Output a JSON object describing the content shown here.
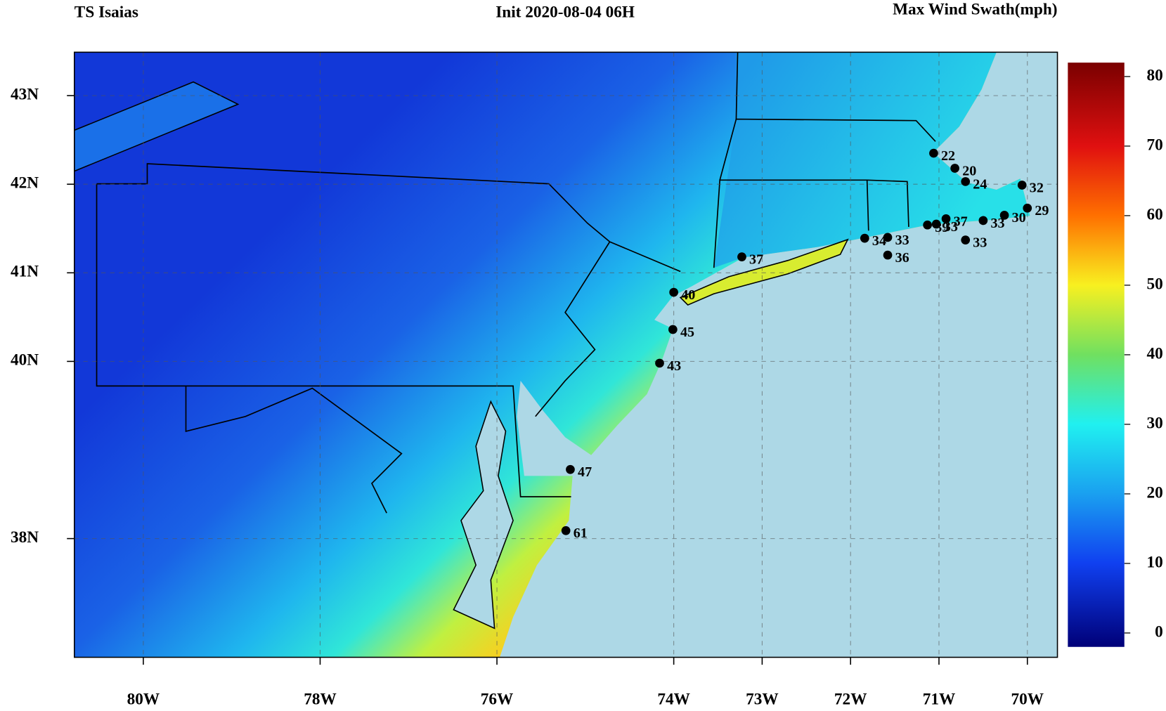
{
  "chart_data": {
    "type": "map",
    "title": "TS Isaias",
    "subtitle": "Init  2020-08-04 06H",
    "legend_title": "Max Wind Swath(mph)",
    "xlim": [
      -80.78,
      -69.66
    ],
    "ylim": [
      36.66,
      43.49
    ],
    "xticks": [
      {
        "value": -80,
        "label": "80W"
      },
      {
        "value": -78,
        "label": "78W"
      },
      {
        "value": -76,
        "label": "76W"
      },
      {
        "value": -74,
        "label": "74W"
      },
      {
        "value": -73,
        "label": "73W"
      },
      {
        "value": -72,
        "label": "72W"
      },
      {
        "value": -71,
        "label": "71W"
      },
      {
        "value": -70,
        "label": "70W"
      }
    ],
    "yticks": [
      {
        "value": 38,
        "label": "38N"
      },
      {
        "value": 40,
        "label": "40N"
      },
      {
        "value": 41,
        "label": "41N"
      },
      {
        "value": 42,
        "label": "42N"
      },
      {
        "value": 43,
        "label": "43N"
      }
    ],
    "clim": [
      -2,
      82
    ],
    "cticks": [
      0,
      10,
      20,
      30,
      40,
      50,
      60,
      70,
      80
    ],
    "grid": true,
    "station_color": "#000000",
    "stations": [
      {
        "lon": -71.06,
        "lat": 42.35,
        "value": 22
      },
      {
        "lon": -70.82,
        "lat": 42.18,
        "value": 20
      },
      {
        "lon": -70.7,
        "lat": 42.03,
        "value": 24
      },
      {
        "lon": -70.06,
        "lat": 41.99,
        "value": 32
      },
      {
        "lon": -70.0,
        "lat": 41.73,
        "value": 29
      },
      {
        "lon": -70.26,
        "lat": 41.65,
        "value": 30
      },
      {
        "lon": -70.5,
        "lat": 41.59,
        "value": 33
      },
      {
        "lon": -70.92,
        "lat": 41.61,
        "value": 37
      },
      {
        "lon": -71.03,
        "lat": 41.55,
        "value": 33
      },
      {
        "lon": -71.13,
        "lat": 41.54,
        "value": 39
      },
      {
        "lon": -70.7,
        "lat": 41.37,
        "value": 33
      },
      {
        "lon": -71.84,
        "lat": 41.39,
        "value": 34
      },
      {
        "lon": -71.58,
        "lat": 41.4,
        "value": 33
      },
      {
        "lon": -71.58,
        "lat": 41.2,
        "value": 36
      },
      {
        "lon": -73.23,
        "lat": 41.18,
        "value": 37
      },
      {
        "lon": -74.0,
        "lat": 40.78,
        "value": 40
      },
      {
        "lon": -74.01,
        "lat": 40.36,
        "value": 45
      },
      {
        "lon": -74.16,
        "lat": 39.98,
        "value": 43
      },
      {
        "lon": -75.17,
        "lat": 38.78,
        "value": 47
      },
      {
        "lon": -75.22,
        "lat": 38.09,
        "value": 61
      }
    ]
  }
}
